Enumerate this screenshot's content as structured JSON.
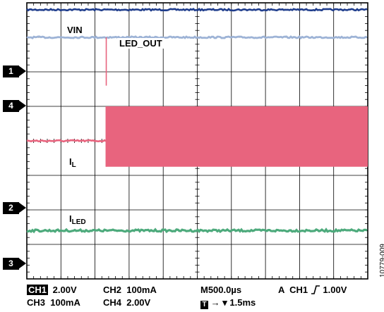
{
  "chart_data": {
    "type": "line",
    "divisions": {
      "x": 10,
      "y": 8
    },
    "grid": true,
    "series": [
      {
        "name": "VIN",
        "color": "#1f3d8c",
        "level_div": 0.2
      },
      {
        "name": "LED_OUT",
        "color": "#9db3d6",
        "level_div": 1.0
      },
      {
        "name": "IL",
        "color": "#e8647e",
        "before_div": 4.0,
        "band_div": [
          3.0,
          4.75
        ],
        "step_x_div": 2.33
      },
      {
        "name": "ILED",
        "color": "#4daa7c",
        "level_div": 6.6
      }
    ],
    "labels": {
      "vin": "VIN",
      "led_out": "LED_OUT",
      "il_main": "I",
      "il_sub": "L",
      "iled_main": "I",
      "iled_sub": "LED"
    },
    "markers": [
      "1",
      "4",
      "2",
      "3"
    ],
    "status": {
      "ch1_badge": "CH1",
      "ch1_scale": "2.00V",
      "ch2": "CH2  100mA",
      "ch3": "CH3  100mA",
      "ch4": "CH4  2.00V",
      "timebase": "M500.0µs",
      "trigger_prefix": "A  CH1",
      "trigger_level": "1.00V",
      "t_badge": "T",
      "trigger_position": "1.5ms",
      "t_arrow": "→ ▾"
    },
    "figure_id": "10779-009"
  }
}
